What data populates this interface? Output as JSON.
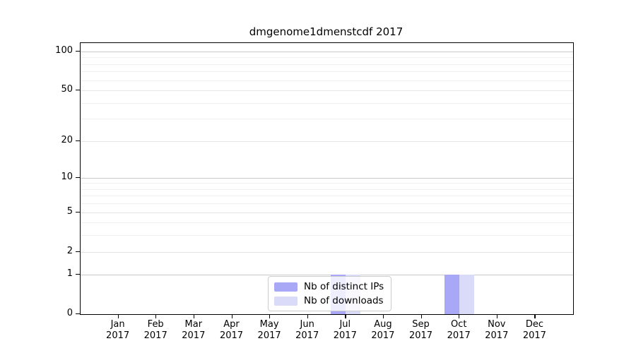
{
  "chart_data": {
    "type": "bar",
    "title": "dmgenome1dmenstcdf 2017",
    "categories": [
      "Jan",
      "Feb",
      "Mar",
      "Apr",
      "May",
      "Jun",
      "Jul",
      "Aug",
      "Sep",
      "Oct",
      "Nov",
      "Dec"
    ],
    "year": "2017",
    "series": [
      {
        "name": "Nb of distinct IPs",
        "color": "#a8a8f7",
        "values": [
          0,
          0,
          0,
          0,
          0,
          0,
          1,
          0,
          0,
          1,
          0,
          0
        ]
      },
      {
        "name": "Nb of downloads",
        "color": "#dadaf9",
        "values": [
          0,
          0,
          0,
          0,
          0,
          0,
          1,
          0,
          0,
          1,
          0,
          0
        ]
      }
    ],
    "yscale": "log1p",
    "ylim": [
      0,
      115
    ],
    "yticks": [
      0,
      1,
      2,
      5,
      10,
      20,
      50,
      100
    ],
    "minor_gridlines": [
      3,
      4,
      6,
      7,
      8,
      9,
      30,
      40,
      60,
      70,
      80,
      90
    ],
    "grid": "horizontal",
    "legend_position": "bottom-center",
    "colors": {
      "pow10_gridline": "#c9c9c9",
      "mid_gridline": "#e4e4e4",
      "minor_gridline": "#f0f0f0",
      "axis": "#000000"
    }
  }
}
